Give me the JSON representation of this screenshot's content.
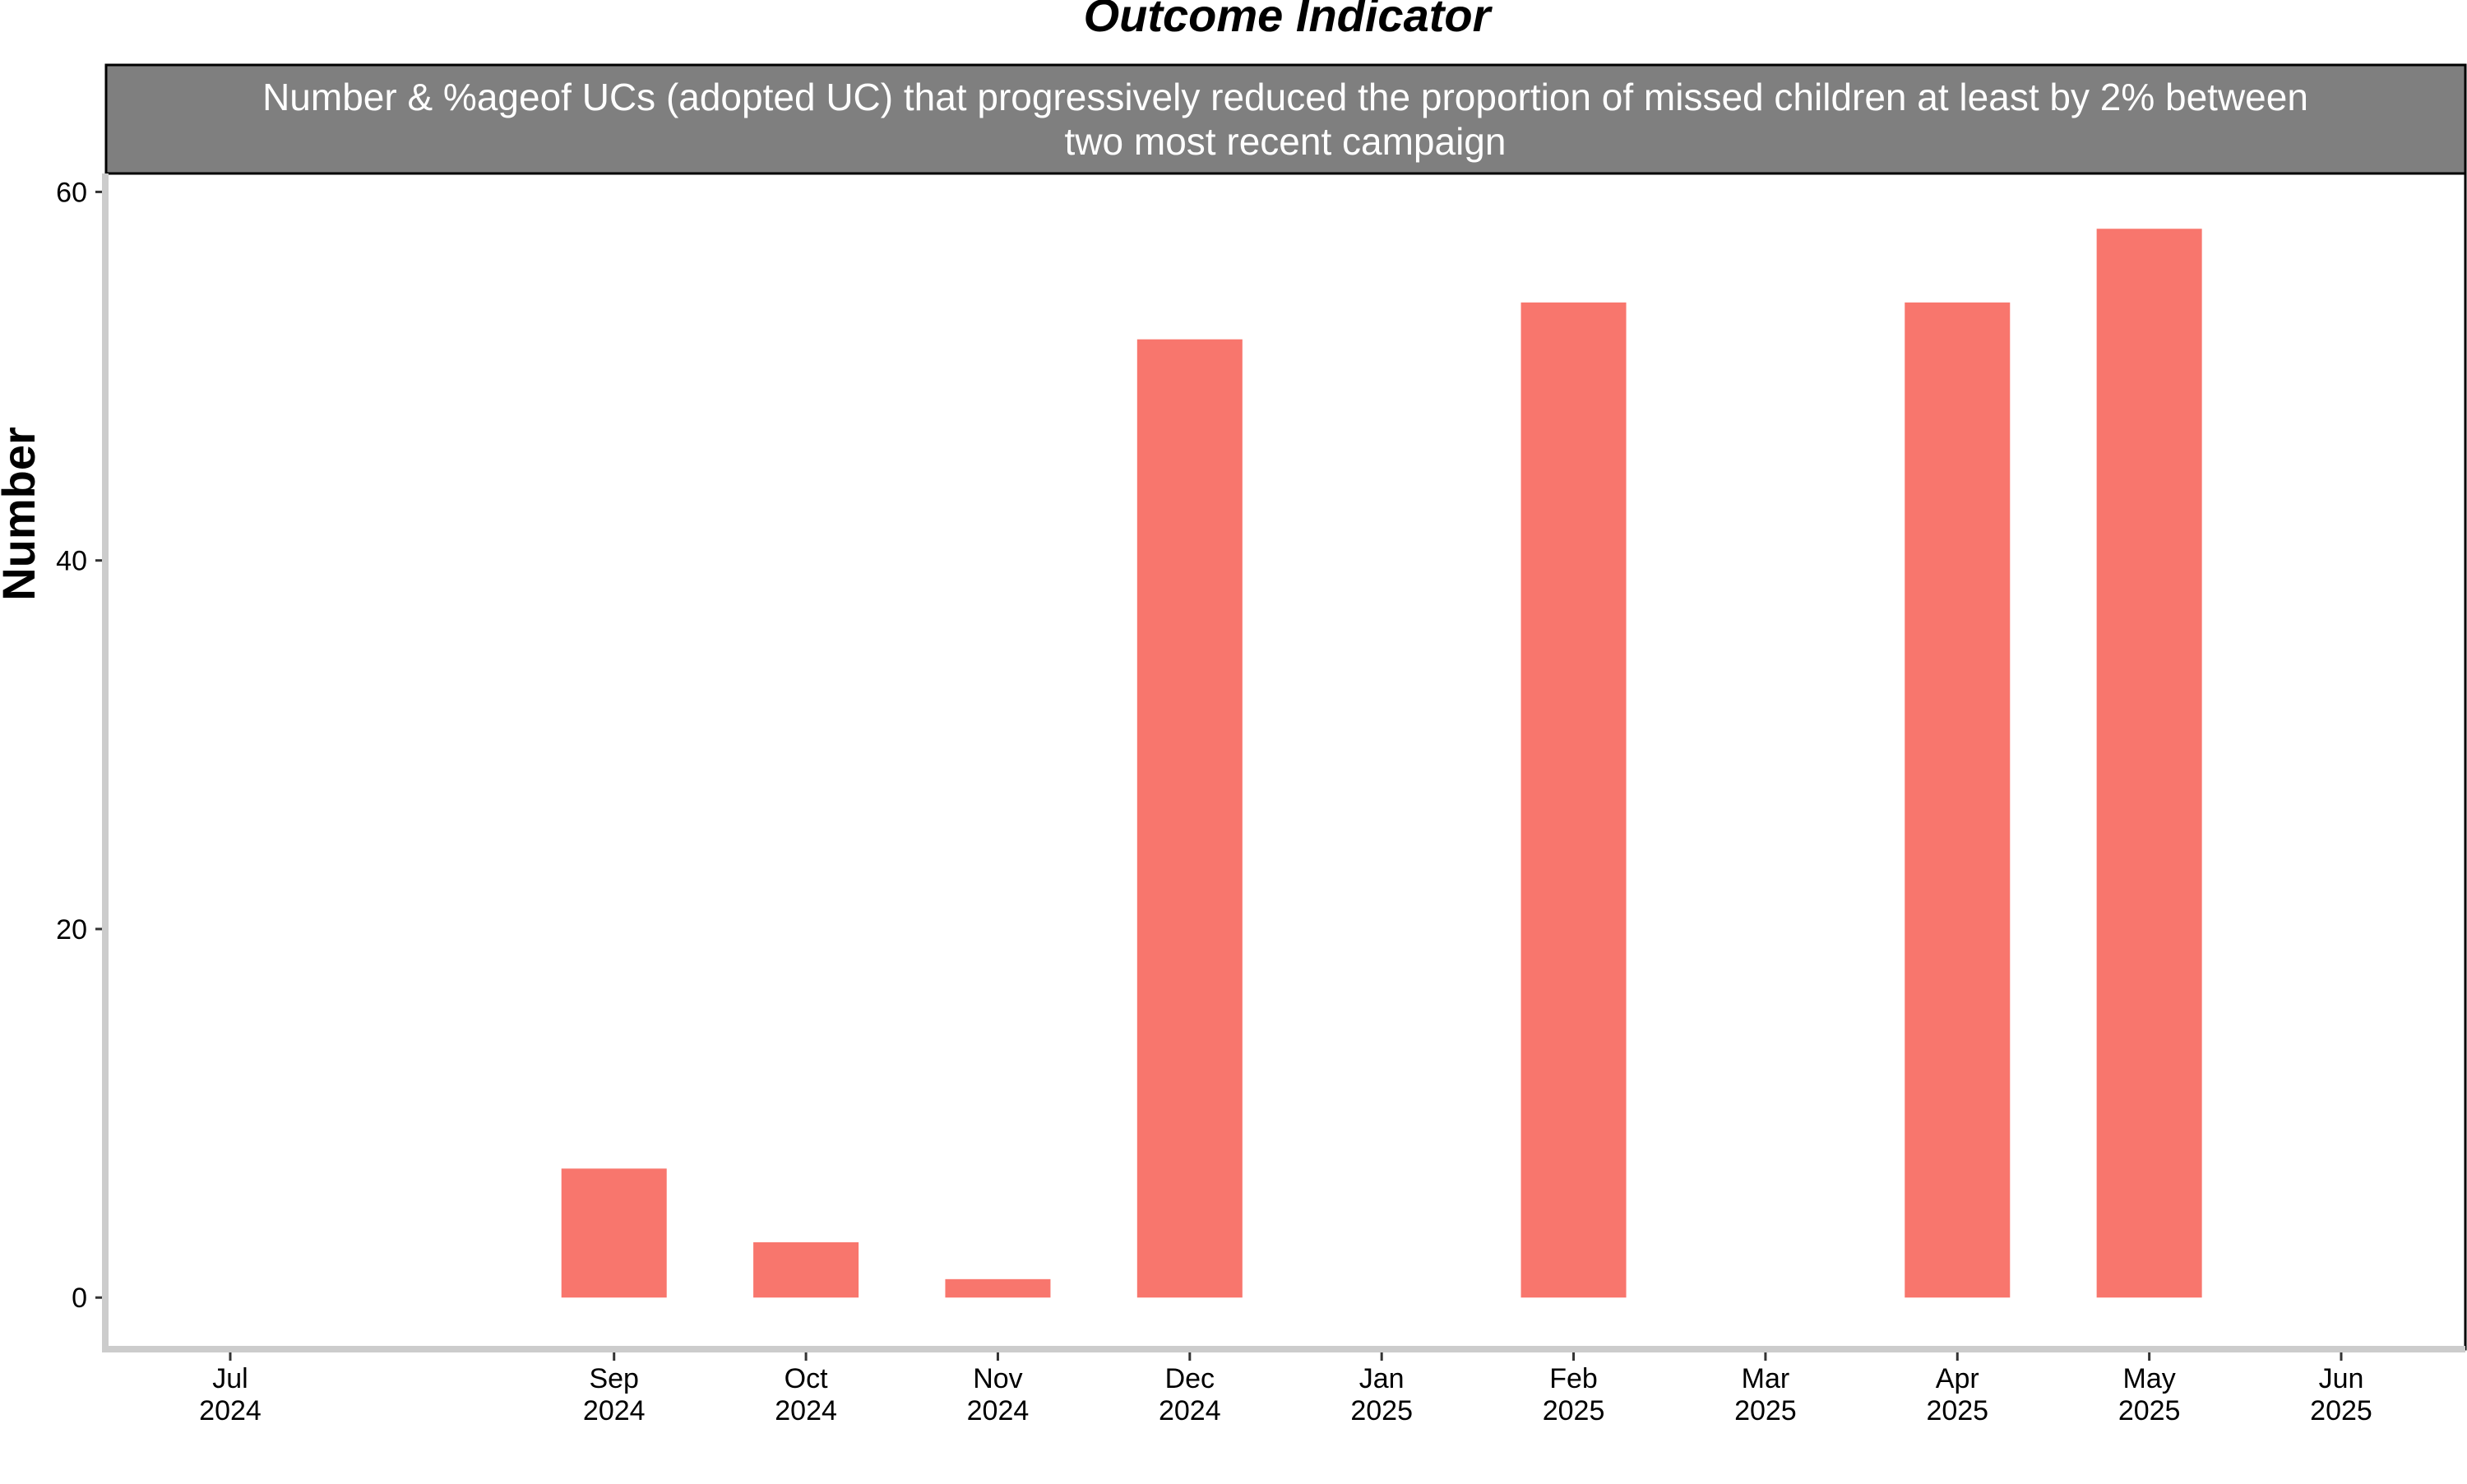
{
  "chart_data": {
    "type": "bar",
    "title": "Outcome Indicator",
    "strip_title_lines": [
      "Number & %ageof UCs (adopted UC) that progressively reduced the proportion of missed children at least by 2% between",
      "two most recent campaign"
    ],
    "xlabel": "",
    "ylabel": "Number",
    "x_ticks": [
      {
        "month": "Jul",
        "year": "2024",
        "date": "2024-07"
      },
      {
        "month": "Sep",
        "year": "2024",
        "date": "2024-09"
      },
      {
        "month": "Oct",
        "year": "2024",
        "date": "2024-10"
      },
      {
        "month": "Nov",
        "year": "2024",
        "date": "2024-11"
      },
      {
        "month": "Dec",
        "year": "2024",
        "date": "2024-12"
      },
      {
        "month": "Jan",
        "year": "2025",
        "date": "2025-01"
      },
      {
        "month": "Feb",
        "year": "2025",
        "date": "2025-02"
      },
      {
        "month": "Mar",
        "year": "2025",
        "date": "2025-03"
      },
      {
        "month": "Apr",
        "year": "2025",
        "date": "2025-04"
      },
      {
        "month": "May",
        "year": "2025",
        "date": "2025-05"
      },
      {
        "month": "Jun",
        "year": "2025",
        "date": "2025-06"
      }
    ],
    "bars": [
      {
        "date": "2024-09",
        "value": 7
      },
      {
        "date": "2024-10",
        "value": 3
      },
      {
        "date": "2024-11",
        "value": 1
      },
      {
        "date": "2024-12",
        "value": 52
      },
      {
        "date": "2025-02",
        "value": 54
      },
      {
        "date": "2025-04",
        "value": 54
      },
      {
        "date": "2025-05",
        "value": 58
      }
    ],
    "y_ticks": [
      0,
      20,
      40,
      60
    ],
    "ylim": [
      -2.8,
      61
    ],
    "bar_color": "#F8766D",
    "strip_color": "#7F7F7F",
    "axis_color": "#CCCCCC",
    "grid": false,
    "legend": "none"
  }
}
